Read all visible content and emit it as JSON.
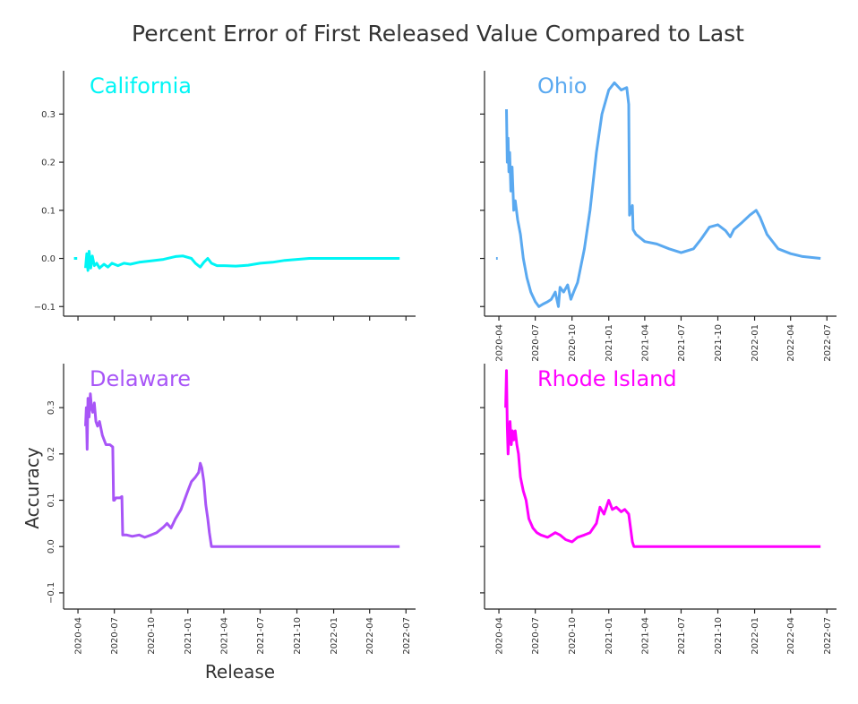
{
  "figure": {
    "title": "Percent Error of First Released Value Compared to Last",
    "shared_ylabel": "Accuracy",
    "shared_xlabel": "Release"
  },
  "chart_data": [
    {
      "type": "line",
      "title": "California",
      "color": "#00f5f5",
      "ylim": [
        -0.12,
        0.39
      ],
      "yticks": [
        -0.1,
        0.0,
        0.1,
        0.2,
        0.3
      ],
      "ytick_labels": [
        "−0.1",
        "0.0",
        "0.1",
        "0.2",
        "0.3"
      ],
      "xlim": [
        "2020-02-25",
        "2022-07-25"
      ],
      "xticks": [
        "2020-04-01",
        "2020-07-01",
        "2020-10-01",
        "2021-01-01",
        "2021-04-01",
        "2021-07-01",
        "2021-10-01",
        "2022-01-01",
        "2022-04-01",
        "2022-07-01"
      ],
      "xtick_labels": [],
      "series": [
        {
          "x": [
            "2020-03-22",
            "2020-03-30"
          ],
          "y": [
            0.0,
            0.0
          ]
        },
        {
          "x": [
            "2020-04-20",
            "2020-04-23",
            "2020-04-26",
            "2020-04-29",
            "2020-05-03",
            "2020-05-07",
            "2020-05-12",
            "2020-05-18",
            "2020-05-25",
            "2020-06-05",
            "2020-06-15",
            "2020-06-25",
            "2020-07-10",
            "2020-07-25",
            "2020-08-10",
            "2020-09-01",
            "2020-10-01",
            "2020-11-01",
            "2020-12-01",
            "2020-12-20",
            "2021-01-10",
            "2021-01-20",
            "2021-02-01",
            "2021-02-10",
            "2021-02-20",
            "2021-03-01",
            "2021-03-15",
            "2021-04-01",
            "2021-05-01",
            "2021-06-01",
            "2021-07-01",
            "2021-08-01",
            "2021-09-01",
            "2021-10-01",
            "2021-11-01",
            "2022-01-01",
            "2022-03-01",
            "2022-05-01",
            "2022-06-15"
          ],
          "y": [
            -0.02,
            0.01,
            -0.025,
            0.015,
            -0.02,
            0.005,
            -0.015,
            -0.01,
            -0.02,
            -0.012,
            -0.018,
            -0.01,
            -0.015,
            -0.01,
            -0.012,
            -0.008,
            -0.005,
            -0.002,
            0.004,
            0.005,
            0.0,
            -0.01,
            -0.018,
            -0.008,
            0.0,
            -0.01,
            -0.015,
            -0.015,
            -0.016,
            -0.014,
            -0.01,
            -0.008,
            -0.004,
            -0.002,
            0.0,
            0.0,
            0.0,
            0.0,
            0.0
          ]
        }
      ]
    },
    {
      "type": "line",
      "title": "Ohio",
      "color": "#5aa9f0",
      "ylim": [
        -0.12,
        0.39
      ],
      "yticks": [
        -0.1,
        0.0,
        0.1,
        0.2,
        0.3
      ],
      "ytick_labels": [],
      "xlim": [
        "2020-02-25",
        "2022-07-25"
      ],
      "xticks": [
        "2020-04-01",
        "2020-07-01",
        "2020-10-01",
        "2021-01-01",
        "2021-04-01",
        "2021-07-01",
        "2021-10-01",
        "2022-01-01",
        "2022-04-01",
        "2022-07-01"
      ],
      "xtick_labels": [
        "2020-04",
        "2020-07",
        "2020-10",
        "2021-01",
        "2021-04",
        "2021-07",
        "2021-10",
        "2022-01",
        "2022-04",
        "2022-07"
      ],
      "series": [
        {
          "x": [
            "2020-03-25",
            "2020-03-29"
          ],
          "y": [
            0.0,
            0.0
          ]
        },
        {
          "x": [
            "2020-04-20",
            "2020-04-22",
            "2020-04-24",
            "2020-04-26",
            "2020-04-28",
            "2020-05-01",
            "2020-05-04",
            "2020-05-08",
            "2020-05-12",
            "2020-05-18",
            "2020-05-25",
            "2020-06-01",
            "2020-06-10",
            "2020-06-20",
            "2020-07-01",
            "2020-07-10",
            "2020-07-20",
            "2020-08-01",
            "2020-08-10",
            "2020-08-20",
            "2020-08-28",
            "2020-09-01",
            "2020-09-10",
            "2020-09-20",
            "2020-09-28",
            "2020-10-05",
            "2020-10-15",
            "2020-11-01",
            "2020-11-15",
            "2020-12-01",
            "2020-12-15",
            "2021-01-01",
            "2021-01-15",
            "2021-02-01",
            "2021-02-15",
            "2021-02-20",
            "2021-02-22",
            "2021-03-01",
            "2021-03-03",
            "2021-03-10",
            "2021-04-01",
            "2021-05-01",
            "2021-06-01",
            "2021-07-01",
            "2021-08-01",
            "2021-08-20",
            "2021-09-10",
            "2021-10-01",
            "2021-10-20",
            "2021-11-01",
            "2021-11-10",
            "2021-12-01",
            "2021-12-20",
            "2022-01-05",
            "2022-01-15",
            "2022-02-01",
            "2022-03-01",
            "2022-04-01",
            "2022-05-01",
            "2022-06-15"
          ],
          "y": [
            0.31,
            0.2,
            0.25,
            0.18,
            0.22,
            0.14,
            0.19,
            0.1,
            0.12,
            0.08,
            0.05,
            0.0,
            -0.04,
            -0.07,
            -0.09,
            -0.1,
            -0.095,
            -0.09,
            -0.085,
            -0.07,
            -0.1,
            -0.06,
            -0.07,
            -0.055,
            -0.085,
            -0.07,
            -0.05,
            0.02,
            0.1,
            0.22,
            0.3,
            0.35,
            0.365,
            0.35,
            0.355,
            0.32,
            0.09,
            0.11,
            0.06,
            0.05,
            0.035,
            0.03,
            0.02,
            0.012,
            0.02,
            0.04,
            0.065,
            0.07,
            0.058,
            0.045,
            0.06,
            0.075,
            0.09,
            0.1,
            0.085,
            0.05,
            0.02,
            0.01,
            0.004,
            0.0
          ]
        }
      ]
    },
    {
      "type": "line",
      "title": "Delaware",
      "color": "#a855f7",
      "ylim": [
        -0.135,
        0.395
      ],
      "yticks": [
        -0.1,
        0.0,
        0.1,
        0.2,
        0.3
      ],
      "ytick_labels": [
        "−0.1",
        "0.0",
        "0.1",
        "0.2",
        "0.3"
      ],
      "xlim": [
        "2020-02-25",
        "2022-07-25"
      ],
      "xticks": [
        "2020-04-01",
        "2020-07-01",
        "2020-10-01",
        "2021-01-01",
        "2021-04-01",
        "2021-07-01",
        "2021-10-01",
        "2022-01-01",
        "2022-04-01",
        "2022-07-01"
      ],
      "xtick_labels": [
        "2020-04",
        "2020-07",
        "2020-10",
        "2021-01",
        "2021-04",
        "2021-07",
        "2021-10",
        "2022-01",
        "2022-04",
        "2022-07"
      ],
      "series": [
        {
          "x": [
            "2020-04-20",
            "2020-04-22",
            "2020-04-24",
            "2020-04-26",
            "2020-04-29",
            "2020-05-02",
            "2020-05-05",
            "2020-05-08",
            "2020-05-12",
            "2020-05-16",
            "2020-05-20",
            "2020-05-25",
            "2020-06-01",
            "2020-06-10",
            "2020-06-20",
            "2020-06-27",
            "2020-06-29",
            "2020-07-01",
            "2020-07-05",
            "2020-07-15",
            "2020-07-20",
            "2020-07-22",
            "2020-08-01",
            "2020-08-15",
            "2020-09-01",
            "2020-09-15",
            "2020-10-01",
            "2020-10-15",
            "2020-11-01",
            "2020-11-10",
            "2020-11-20",
            "2020-12-01",
            "2020-12-15",
            "2021-01-01",
            "2021-01-10",
            "2021-01-20",
            "2021-01-28",
            "2021-02-01",
            "2021-02-05",
            "2021-02-10",
            "2021-02-15",
            "2021-02-20",
            "2021-02-24",
            "2021-03-01",
            "2021-04-01",
            "2021-07-01",
            "2021-10-01",
            "2022-01-01",
            "2022-04-01",
            "2022-06-15"
          ],
          "y": [
            0.26,
            0.3,
            0.21,
            0.32,
            0.28,
            0.33,
            0.3,
            0.29,
            0.31,
            0.27,
            0.26,
            0.27,
            0.24,
            0.22,
            0.22,
            0.215,
            0.1,
            0.1,
            0.105,
            0.105,
            0.108,
            0.025,
            0.025,
            0.022,
            0.025,
            0.02,
            0.025,
            0.03,
            0.042,
            0.05,
            0.04,
            0.06,
            0.08,
            0.12,
            0.14,
            0.15,
            0.16,
            0.18,
            0.17,
            0.14,
            0.09,
            0.06,
            0.03,
            0.0,
            0.0,
            0.0,
            0.0,
            0.0,
            0.0,
            0.0
          ]
        }
      ]
    },
    {
      "type": "line",
      "title": "Rhode Island",
      "color": "#ff00ff",
      "ylim": [
        -0.135,
        0.395
      ],
      "yticks": [
        -0.1,
        0.0,
        0.1,
        0.2,
        0.3
      ],
      "ytick_labels": [],
      "xlim": [
        "2020-02-25",
        "2022-07-25"
      ],
      "xticks": [
        "2020-04-01",
        "2020-07-01",
        "2020-10-01",
        "2021-01-01",
        "2021-04-01",
        "2021-07-01",
        "2021-10-01",
        "2022-01-01",
        "2022-04-01",
        "2022-07-01"
      ],
      "xtick_labels": [
        "2020-04",
        "2020-07",
        "2020-10",
        "2021-01",
        "2021-04",
        "2021-07",
        "2021-10",
        "2022-01",
        "2022-04",
        "2022-07"
      ],
      "series": [
        {
          "x": [
            "2020-04-18",
            "2020-04-20",
            "2020-04-22",
            "2020-04-24",
            "2020-04-26",
            "2020-04-29",
            "2020-05-02",
            "2020-05-05",
            "2020-05-08",
            "2020-05-12",
            "2020-05-16",
            "2020-05-20",
            "2020-05-25",
            "2020-06-01",
            "2020-06-08",
            "2020-06-15",
            "2020-06-25",
            "2020-07-05",
            "2020-07-15",
            "2020-08-01",
            "2020-08-20",
            "2020-09-01",
            "2020-09-15",
            "2020-10-01",
            "2020-10-15",
            "2020-11-01",
            "2020-11-15",
            "2020-12-01",
            "2020-12-10",
            "2020-12-20",
            "2021-01-01",
            "2021-01-10",
            "2021-01-20",
            "2021-02-01",
            "2021-02-10",
            "2021-02-20",
            "2021-03-01",
            "2021-03-05",
            "2021-04-01",
            "2021-07-01",
            "2021-10-01",
            "2022-01-01",
            "2022-04-01",
            "2022-06-15"
          ],
          "y": [
            0.3,
            0.38,
            0.26,
            0.2,
            0.24,
            0.27,
            0.22,
            0.25,
            0.23,
            0.25,
            0.22,
            0.2,
            0.15,
            0.12,
            0.1,
            0.06,
            0.04,
            0.03,
            0.025,
            0.02,
            0.03,
            0.025,
            0.015,
            0.01,
            0.02,
            0.025,
            0.03,
            0.05,
            0.085,
            0.07,
            0.1,
            0.08,
            0.085,
            0.075,
            0.08,
            0.07,
            0.01,
            0.0,
            0.0,
            0.0,
            0.0,
            0.0,
            0.0,
            0.0
          ]
        }
      ]
    }
  ]
}
